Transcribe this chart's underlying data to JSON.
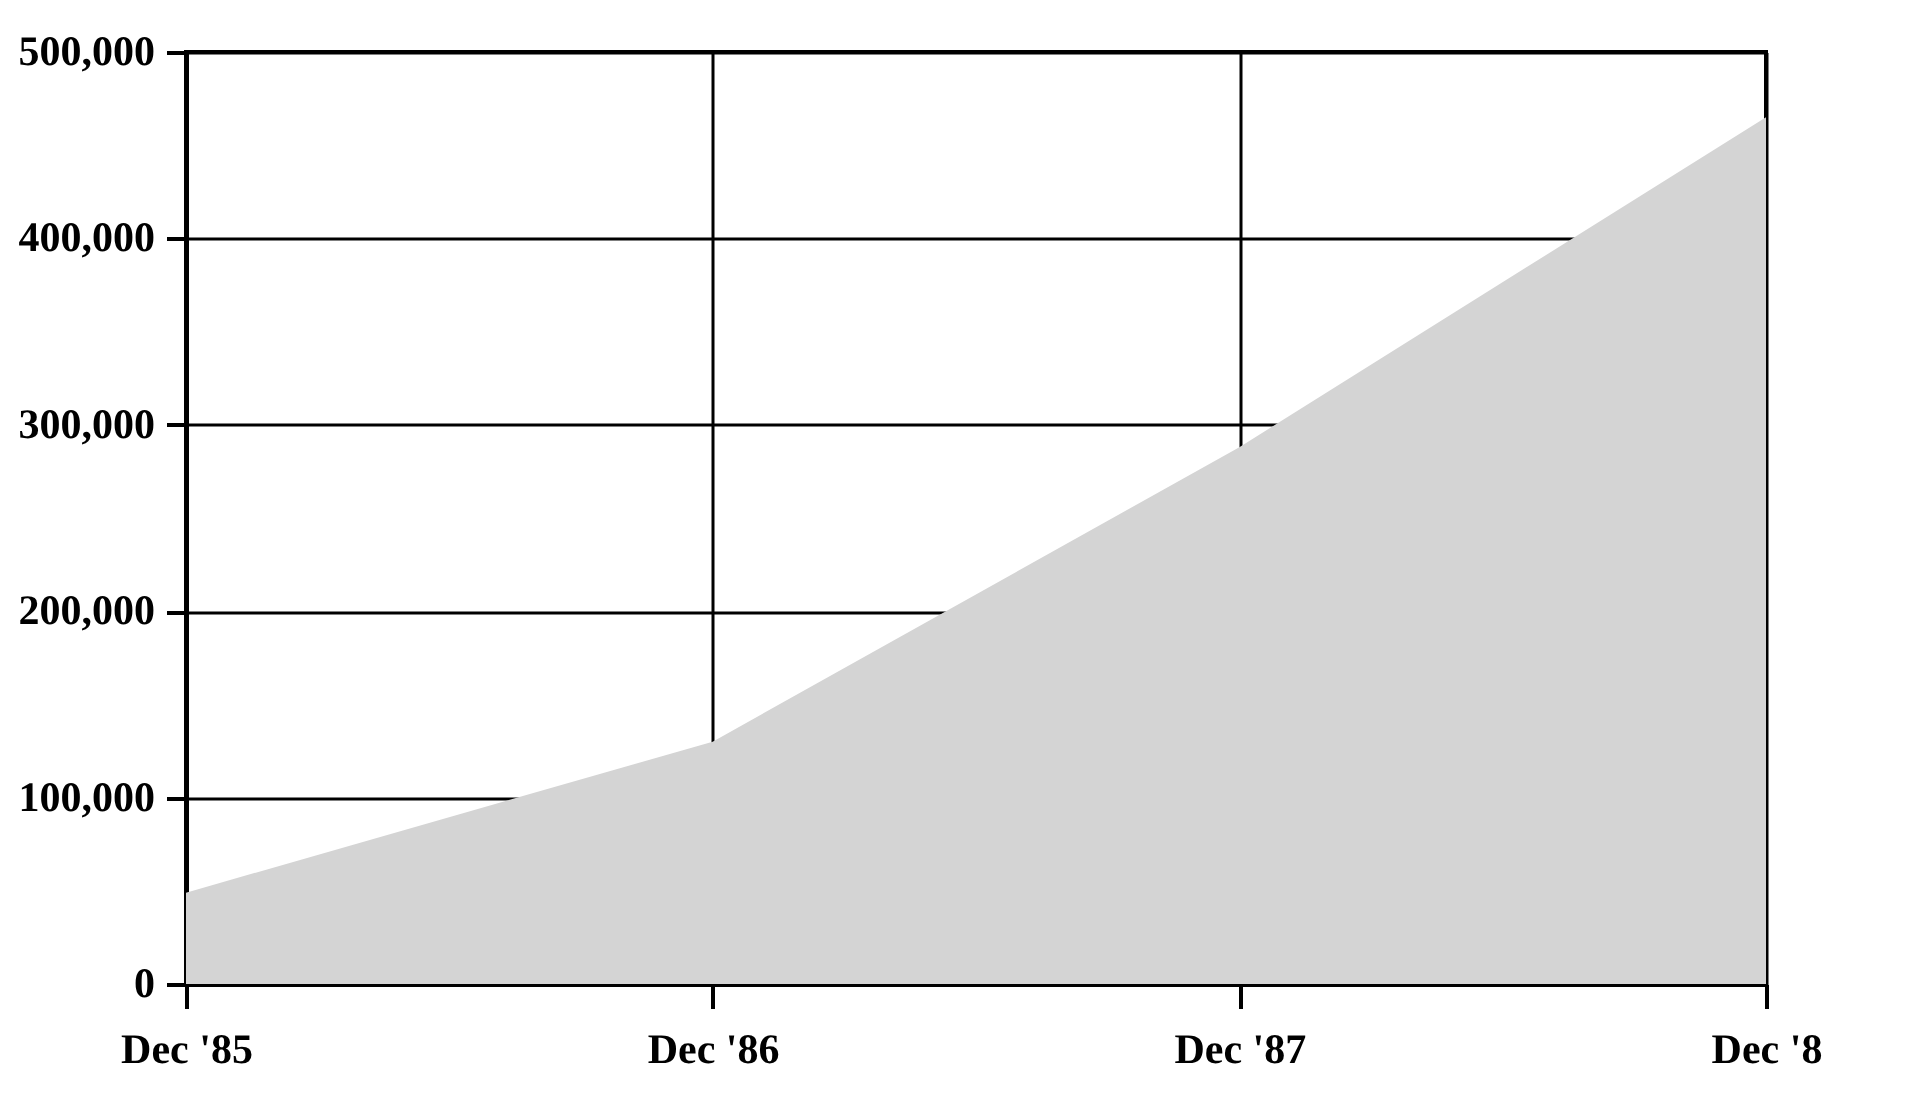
{
  "chart_data": {
    "type": "area",
    "categories": [
      "Dec '85",
      "Dec '86",
      "Dec '87",
      "Dec '8"
    ],
    "values": [
      49000,
      130000,
      288000,
      465000
    ],
    "color": "#d4d4d4",
    "ylim": [
      0,
      500000
    ],
    "yticks": [
      {
        "value": 0,
        "label": "0"
      },
      {
        "value": 100000,
        "label": "100,000"
      },
      {
        "value": 200000,
        "label": "200,000"
      },
      {
        "value": 300000,
        "label": "300,000"
      },
      {
        "value": 400000,
        "label": "400,000"
      },
      {
        "value": 500000,
        "label": "500,000"
      }
    ],
    "grid": true
  }
}
